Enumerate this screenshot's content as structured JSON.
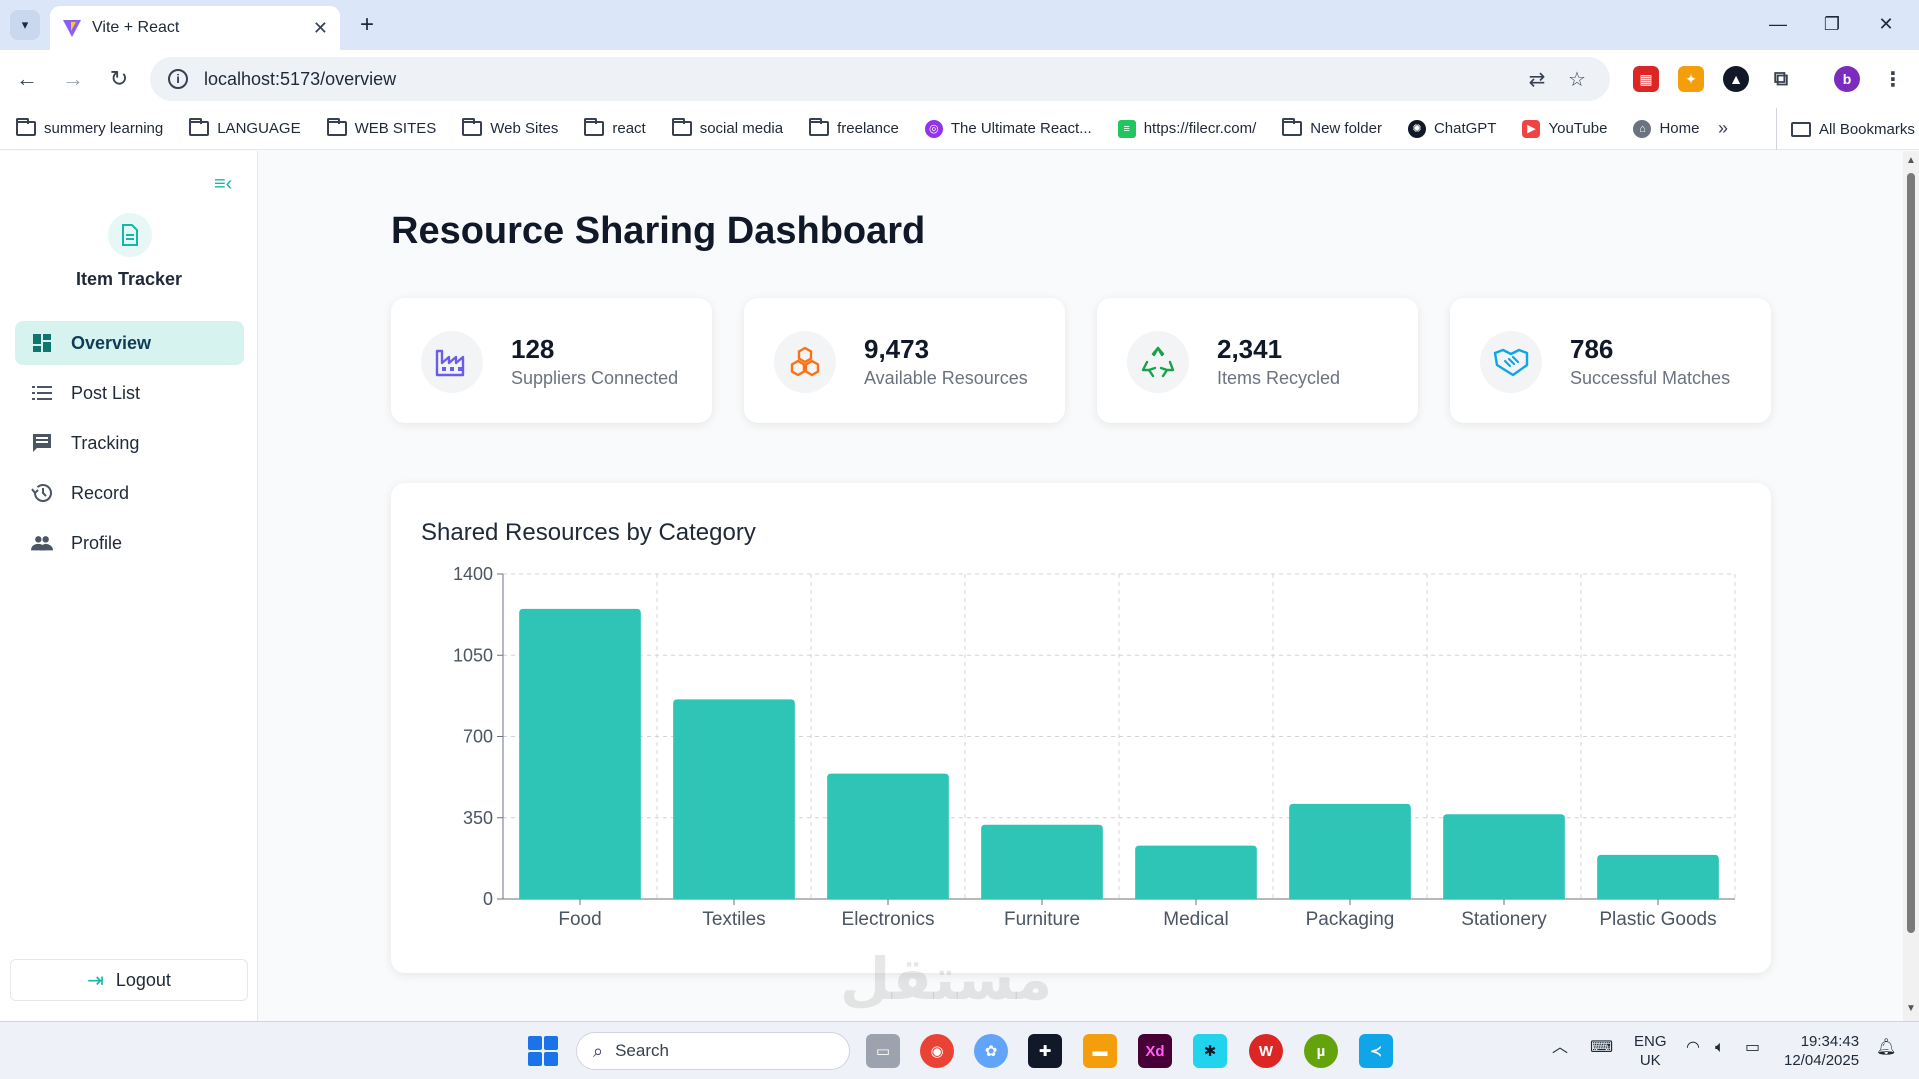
{
  "browser": {
    "tab_title": "Vite + React",
    "url": "localhost:5173/overview",
    "bookmarks": [
      "summery learning",
      "LANGUAGE",
      "WEB SITES",
      "Web Sites",
      "react",
      "social media",
      "freelance",
      "The Ultimate React...",
      "https://filecr.com/",
      "New folder",
      "ChatGPT",
      "YouTube",
      "Home"
    ],
    "all_bookmarks": "All Bookmarks",
    "profile_initial": "b"
  },
  "sidebar": {
    "brand": "Item Tracker",
    "items": [
      {
        "label": "Overview",
        "icon": "dashboard-icon"
      },
      {
        "label": "Post List",
        "icon": "list-icon"
      },
      {
        "label": "Tracking",
        "icon": "chat-icon"
      },
      {
        "label": "Record",
        "icon": "history-icon"
      },
      {
        "label": "Profile",
        "icon": "people-icon"
      }
    ],
    "logout": "Logout"
  },
  "main": {
    "title": "Resource Sharing Dashboard",
    "stats": [
      {
        "value": "128",
        "label": "Suppliers Connected",
        "icon": "factory-icon",
        "color": "#6d5ce8"
      },
      {
        "value": "9,473",
        "label": "Available Resources",
        "icon": "cubes-icon",
        "color": "#f97316"
      },
      {
        "value": "2,341",
        "label": "Items Recycled",
        "icon": "recycle-icon",
        "color": "#16a34a"
      },
      {
        "value": "786",
        "label": "Successful Matches",
        "icon": "handshake-icon",
        "color": "#0ea5e9"
      }
    ],
    "chart_title": "Shared Resources by Category"
  },
  "chart_data": {
    "type": "bar",
    "title": "Shared Resources by Category",
    "categories": [
      "Food",
      "Textiles",
      "Electronics",
      "Furniture",
      "Medical",
      "Packaging",
      "Stationery",
      "Plastic Goods"
    ],
    "values": [
      1250,
      860,
      540,
      320,
      230,
      410,
      365,
      190
    ],
    "yticks": [
      0,
      350,
      700,
      1050,
      1400
    ],
    "ylim": [
      0,
      1400
    ],
    "grid": true,
    "bar_color": "#2ec4b6"
  },
  "taskbar": {
    "search": "Search",
    "lang": "ENG",
    "region": "UK",
    "time": "19:34:43",
    "date": "12/04/2025"
  },
  "watermark": "مستقل"
}
